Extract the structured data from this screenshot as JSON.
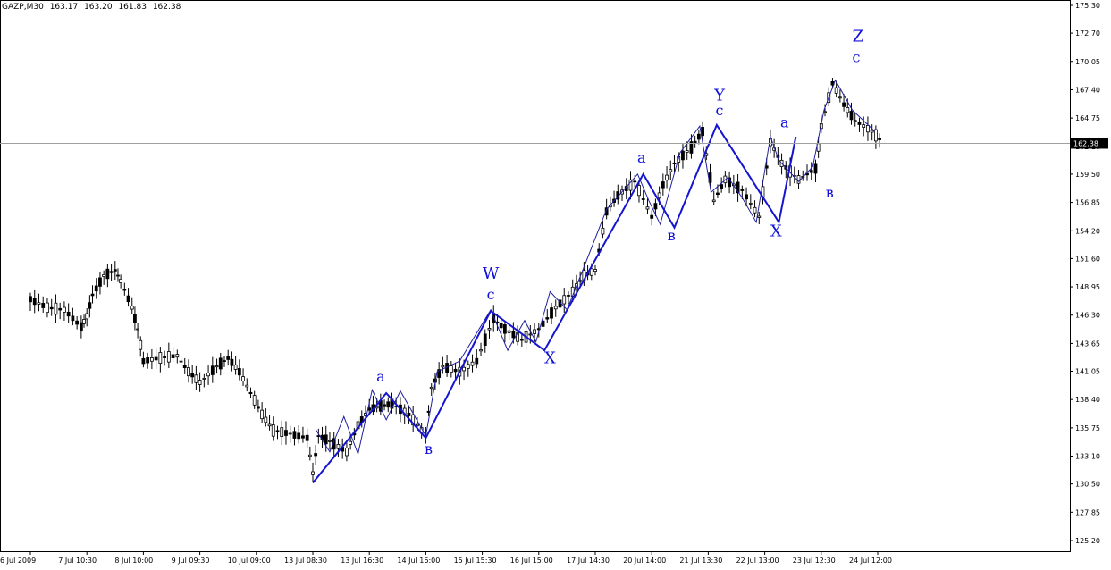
{
  "header": {
    "symbol": "GAZP,M30",
    "open": "163.17",
    "high": "163.20",
    "low": "161.83",
    "close": "162.38"
  },
  "chart_data": {
    "type": "candlestick",
    "symbol": "GAZP,M30",
    "ylim": [
      125.2,
      175.3
    ],
    "y_ticks": [
      "175.30",
      "172.70",
      "170.05",
      "167.40",
      "164.75",
      "162.10",
      "159.50",
      "156.85",
      "154.20",
      "151.60",
      "148.95",
      "146.30",
      "143.65",
      "141.05",
      "138.40",
      "135.75",
      "133.10",
      "130.50",
      "127.85",
      "125.20"
    ],
    "x_ticks": [
      "6 Jul 2009",
      "7 Jul 10:30",
      "8 Jul 10:00",
      "9 Jul 09:30",
      "10 Jul 09:00",
      "13 Jul 08:30",
      "13 Jul 16:30",
      "14 Jul 16:00",
      "15 Jul 15:30",
      "16 Jul 15:00",
      "17 Jul 14:30",
      "20 Jul 14:00",
      "21 Jul 13:30",
      "22 Jul 13:00",
      "23 Jul 12:30",
      "24 Jul 12:00"
    ],
    "current_price": "162.38",
    "price_path": [
      {
        "x": 0,
        "y": 147.8
      },
      {
        "x": 0.3,
        "y": 147.0
      },
      {
        "x": 0.6,
        "y": 146.8
      },
      {
        "x": 0.9,
        "y": 145.2
      },
      {
        "x": 1.0,
        "y": 146.2
      },
      {
        "x": 1.1,
        "y": 148.2
      },
      {
        "x": 1.3,
        "y": 150.0
      },
      {
        "x": 1.5,
        "y": 150.5
      },
      {
        "x": 1.6,
        "y": 149.5
      },
      {
        "x": 1.8,
        "y": 147.0
      },
      {
        "x": 1.9,
        "y": 145.0
      },
      {
        "x": 2.0,
        "y": 142.0
      },
      {
        "x": 2.3,
        "y": 142.3
      },
      {
        "x": 2.6,
        "y": 142.5
      },
      {
        "x": 2.8,
        "y": 141.0
      },
      {
        "x": 3.0,
        "y": 140.0
      },
      {
        "x": 3.3,
        "y": 141.5
      },
      {
        "x": 3.5,
        "y": 142.3
      },
      {
        "x": 3.7,
        "y": 141.0
      },
      {
        "x": 3.9,
        "y": 139.0
      },
      {
        "x": 4.1,
        "y": 137.0
      },
      {
        "x": 4.3,
        "y": 135.5
      },
      {
        "x": 4.6,
        "y": 135.2
      },
      {
        "x": 4.9,
        "y": 134.8
      },
      {
        "x": 5.0,
        "y": 131.5
      },
      {
        "x": 5.1,
        "y": 135.0
      },
      {
        "x": 5.3,
        "y": 134.5
      },
      {
        "x": 5.6,
        "y": 133.5
      },
      {
        "x": 5.8,
        "y": 136.0
      },
      {
        "x": 6.0,
        "y": 137.5
      },
      {
        "x": 6.2,
        "y": 137.8
      },
      {
        "x": 6.4,
        "y": 138.0
      },
      {
        "x": 6.7,
        "y": 137.0
      },
      {
        "x": 7.0,
        "y": 135.0
      },
      {
        "x": 7.1,
        "y": 139.5
      },
      {
        "x": 7.3,
        "y": 141.5
      },
      {
        "x": 7.6,
        "y": 141.0
      },
      {
        "x": 7.9,
        "y": 142.0
      },
      {
        "x": 8.2,
        "y": 146.0
      },
      {
        "x": 8.4,
        "y": 145.0
      },
      {
        "x": 8.7,
        "y": 144.0
      },
      {
        "x": 9.0,
        "y": 145.0
      },
      {
        "x": 9.3,
        "y": 147.0
      },
      {
        "x": 9.6,
        "y": 148.5
      },
      {
        "x": 9.8,
        "y": 150.0
      },
      {
        "x": 10.0,
        "y": 150.5
      },
      {
        "x": 10.2,
        "y": 156.0
      },
      {
        "x": 10.4,
        "y": 157.5
      },
      {
        "x": 10.7,
        "y": 158.8
      },
      {
        "x": 11.0,
        "y": 155.5
      },
      {
        "x": 11.2,
        "y": 158.5
      },
      {
        "x": 11.4,
        "y": 160.5
      },
      {
        "x": 11.7,
        "y": 162.0
      },
      {
        "x": 11.9,
        "y": 163.5
      },
      {
        "x": 12.1,
        "y": 157.0
      },
      {
        "x": 12.3,
        "y": 159.0
      },
      {
        "x": 12.6,
        "y": 158.0
      },
      {
        "x": 12.9,
        "y": 155.5
      },
      {
        "x": 13.1,
        "y": 162.5
      },
      {
        "x": 13.3,
        "y": 160.5
      },
      {
        "x": 13.6,
        "y": 159.0
      },
      {
        "x": 13.9,
        "y": 160.0
      },
      {
        "x": 14.0,
        "y": 164.0
      },
      {
        "x": 14.2,
        "y": 168.0
      },
      {
        "x": 14.4,
        "y": 166.0
      },
      {
        "x": 14.6,
        "y": 164.5
      },
      {
        "x": 14.9,
        "y": 163.5
      },
      {
        "x": 15.1,
        "y": 162.4
      }
    ],
    "overlay_thin": [
      {
        "x": 5.05,
        "y": 135.6
      },
      {
        "x": 5.3,
        "y": 133.5
      },
      {
        "x": 5.55,
        "y": 136.8
      },
      {
        "x": 5.8,
        "y": 133.3
      },
      {
        "x": 6.05,
        "y": 139.3
      },
      {
        "x": 6.3,
        "y": 136.5
      },
      {
        "x": 6.55,
        "y": 139.2
      },
      {
        "x": 7.0,
        "y": 135.0
      },
      {
        "x": 7.2,
        "y": 141.0
      },
      {
        "x": 7.6,
        "y": 142.0
      },
      {
        "x": 8.15,
        "y": 146.8
      },
      {
        "x": 8.45,
        "y": 143.0
      },
      {
        "x": 8.75,
        "y": 145.8
      },
      {
        "x": 8.95,
        "y": 143.8
      },
      {
        "x": 9.2,
        "y": 148.5
      },
      {
        "x": 9.5,
        "y": 146.8
      },
      {
        "x": 9.8,
        "y": 150.8
      },
      {
        "x": 10.2,
        "y": 156.2
      },
      {
        "x": 10.75,
        "y": 159.5
      },
      {
        "x": 10.95,
        "y": 157.0
      },
      {
        "x": 11.15,
        "y": 154.8
      },
      {
        "x": 11.5,
        "y": 161.5
      },
      {
        "x": 11.85,
        "y": 164.0
      },
      {
        "x": 12.05,
        "y": 157.8
      },
      {
        "x": 12.35,
        "y": 159.2
      },
      {
        "x": 12.6,
        "y": 157.3
      },
      {
        "x": 12.85,
        "y": 155.0
      },
      {
        "x": 13.1,
        "y": 163.0
      },
      {
        "x": 13.25,
        "y": 160.8
      },
      {
        "x": 13.6,
        "y": 158.8
      },
      {
        "x": 13.85,
        "y": 160.2
      },
      {
        "x": 14.05,
        "y": 165.5
      },
      {
        "x": 14.25,
        "y": 168.3
      },
      {
        "x": 14.55,
        "y": 165.5
      },
      {
        "x": 14.95,
        "y": 163.5
      }
    ],
    "wave_line": [
      {
        "x": 5.0,
        "y": 130.6
      },
      {
        "x": 6.3,
        "y": 139.0
      },
      {
        "x": 7.0,
        "y": 134.8
      },
      {
        "x": 8.15,
        "y": 146.7
      },
      {
        "x": 9.1,
        "y": 143.0
      },
      {
        "x": 10.85,
        "y": 159.5
      },
      {
        "x": 11.4,
        "y": 154.5
      },
      {
        "x": 12.15,
        "y": 164.1
      },
      {
        "x": 13.25,
        "y": 155.0
      },
      {
        "x": 13.55,
        "y": 163.0
      }
    ],
    "wave_labels": [
      {
        "text": "a",
        "x": 6.2,
        "y": 140.1,
        "size": 16
      },
      {
        "text": "в",
        "x": 7.05,
        "y": 133.3,
        "size": 16
      },
      {
        "text": "W",
        "x": 8.15,
        "y": 149.7,
        "size": 18
      },
      {
        "text": "c",
        "x": 8.15,
        "y": 147.8,
        "size": 16
      },
      {
        "text": "X",
        "x": 9.2,
        "y": 141.8,
        "size": 18
      },
      {
        "text": "a",
        "x": 10.82,
        "y": 160.6,
        "size": 16
      },
      {
        "text": "в",
        "x": 11.35,
        "y": 153.3,
        "size": 16
      },
      {
        "text": "Y",
        "x": 12.2,
        "y": 166.4,
        "size": 18
      },
      {
        "text": "c",
        "x": 12.2,
        "y": 165.0,
        "size": 16
      },
      {
        "text": "X",
        "x": 13.2,
        "y": 153.7,
        "size": 18
      },
      {
        "text": "a",
        "x": 13.35,
        "y": 163.9,
        "size": 16
      },
      {
        "text": "в",
        "x": 14.15,
        "y": 157.3,
        "size": 16
      },
      {
        "text": "Z",
        "x": 14.65,
        "y": 171.9,
        "size": 18
      },
      {
        "text": "c",
        "x": 14.62,
        "y": 170.0,
        "size": 16
      }
    ]
  }
}
